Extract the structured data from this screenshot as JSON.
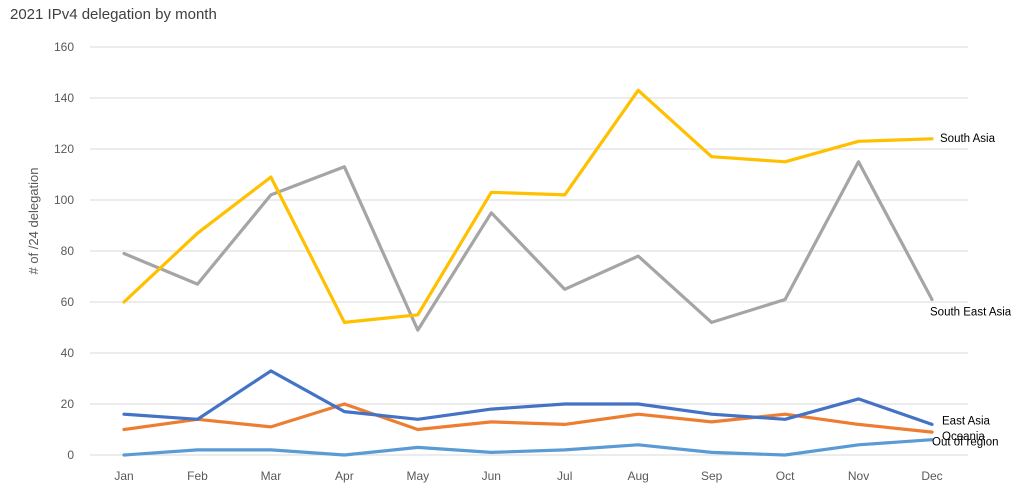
{
  "chart_data": {
    "type": "line",
    "title": "2021 IPv4 delegation by month",
    "xlabel": "",
    "ylabel": "# of /24 delegation",
    "ylim": [
      0,
      160
    ],
    "yticks": [
      0,
      20,
      40,
      60,
      80,
      100,
      120,
      140,
      160
    ],
    "grid": true,
    "legend": "labels at line ends (right)",
    "categories": [
      "Jan",
      "Feb",
      "Mar",
      "Apr",
      "May",
      "Jun",
      "Jul",
      "Aug",
      "Sep",
      "Oct",
      "Nov",
      "Dec"
    ],
    "series": [
      {
        "name": "South Asia",
        "color": "#ffc000",
        "values": [
          60,
          87,
          109,
          52,
          55,
          103,
          102,
          143,
          117,
          115,
          123,
          124
        ]
      },
      {
        "name": "South East Asia",
        "color": "#a5a5a5",
        "values": [
          79,
          67,
          102,
          113,
          49,
          95,
          65,
          78,
          52,
          61,
          115,
          61
        ]
      },
      {
        "name": "East Asia",
        "color": "#4472c4",
        "values": [
          16,
          14,
          33,
          17,
          14,
          18,
          20,
          20,
          16,
          14,
          22,
          12
        ]
      },
      {
        "name": "Oceania",
        "color": "#ed7d31",
        "values": [
          10,
          14,
          11,
          20,
          10,
          13,
          12,
          16,
          13,
          16,
          12,
          9
        ]
      },
      {
        "name": "Out of region",
        "color": "#5b9bd5",
        "values": [
          0,
          2,
          2,
          0,
          3,
          1,
          2,
          4,
          1,
          0,
          4,
          6
        ]
      }
    ]
  }
}
